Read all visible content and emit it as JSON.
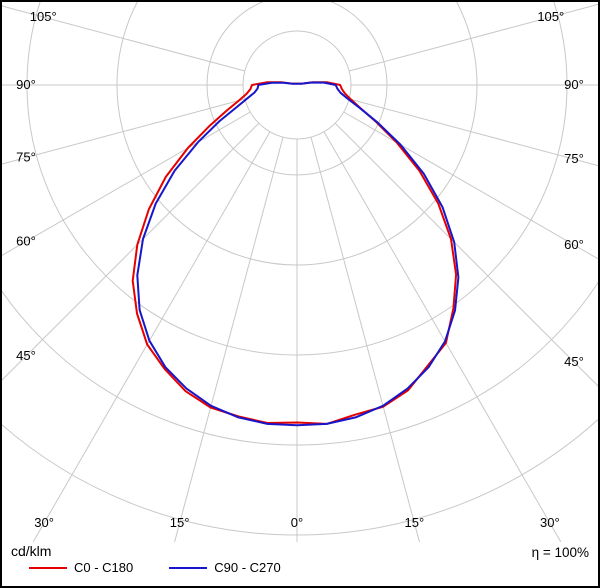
{
  "chart_data": {
    "type": "polar",
    "subtype": "luminous-intensity-distribution",
    "title": "",
    "unit_label": "cd/klm",
    "efficiency_label": "η = 100%",
    "angle_labels": [
      "0°",
      "15°",
      "30°",
      "45°",
      "60°",
      "75°",
      "90°",
      "105°"
    ],
    "angle_tick_step_deg": 15,
    "angle_range_deg": [
      -105,
      105
    ],
    "r_axis": {
      "unit": "cd/klm",
      "ring_step": 100,
      "rings": [
        100,
        200,
        300,
        400,
        500
      ],
      "inner_hole": 60,
      "max": 560
    },
    "grid": {
      "visible": true,
      "color": "#c8c8c8",
      "frame_color": "#000000",
      "background": "#ffffff"
    },
    "legend_position": "bottom-left",
    "series": [
      {
        "name": "C0 - C180",
        "color": "#e60000",
        "points": [
          [
            -105,
            6
          ],
          [
            -100,
            18
          ],
          [
            -95,
            34
          ],
          [
            -90,
            50
          ],
          [
            -85,
            52
          ],
          [
            -80,
            57
          ],
          [
            -75,
            67
          ],
          [
            -70,
            83
          ],
          [
            -65,
            107
          ],
          [
            -60,
            140
          ],
          [
            -55,
            178
          ],
          [
            -50,
            215
          ],
          [
            -45,
            251
          ],
          [
            -40,
            284
          ],
          [
            -35,
            310
          ],
          [
            -30,
            333
          ],
          [
            -25,
            348
          ],
          [
            -20,
            362
          ],
          [
            -15,
            371
          ],
          [
            -10,
            374
          ],
          [
            -5,
            377
          ],
          [
            0,
            375
          ],
          [
            5,
            378
          ],
          [
            10,
            372
          ],
          [
            15,
            370
          ],
          [
            20,
            361
          ],
          [
            25,
            344
          ],
          [
            30,
            331
          ],
          [
            35,
            303
          ],
          [
            40,
            275
          ],
          [
            45,
            242
          ],
          [
            50,
            205
          ],
          [
            55,
            166
          ],
          [
            60,
            128
          ],
          [
            65,
            97
          ],
          [
            70,
            75
          ],
          [
            75,
            62
          ],
          [
            80,
            54
          ],
          [
            85,
            50
          ],
          [
            90,
            48
          ],
          [
            95,
            34
          ],
          [
            100,
            18
          ],
          [
            105,
            6
          ]
        ]
      },
      {
        "name": "C90 - C270",
        "color": "#1717c9",
        "points": [
          [
            -105,
            5
          ],
          [
            -100,
            15
          ],
          [
            -95,
            28
          ],
          [
            -90,
            43
          ],
          [
            -85,
            44
          ],
          [
            -80,
            48
          ],
          [
            -75,
            57
          ],
          [
            -70,
            71
          ],
          [
            -65,
            95
          ],
          [
            -60,
            127
          ],
          [
            -55,
            166
          ],
          [
            -50,
            205
          ],
          [
            -45,
            242
          ],
          [
            -40,
            276
          ],
          [
            -35,
            305
          ],
          [
            -30,
            328
          ],
          [
            -25,
            346
          ],
          [
            -20,
            359
          ],
          [
            -15,
            369
          ],
          [
            -10,
            375
          ],
          [
            -5,
            378
          ],
          [
            0,
            378
          ],
          [
            5,
            378
          ],
          [
            10,
            375
          ],
          [
            15,
            369
          ],
          [
            20,
            359
          ],
          [
            25,
            346
          ],
          [
            30,
            329
          ],
          [
            35,
            306
          ],
          [
            40,
            279
          ],
          [
            45,
            247
          ],
          [
            50,
            211
          ],
          [
            55,
            172
          ],
          [
            60,
            133
          ],
          [
            65,
            99
          ],
          [
            70,
            74
          ],
          [
            75,
            58
          ],
          [
            80,
            49
          ],
          [
            85,
            45
          ],
          [
            90,
            43
          ],
          [
            95,
            30
          ],
          [
            100,
            16
          ],
          [
            105,
            5
          ]
        ]
      }
    ]
  }
}
